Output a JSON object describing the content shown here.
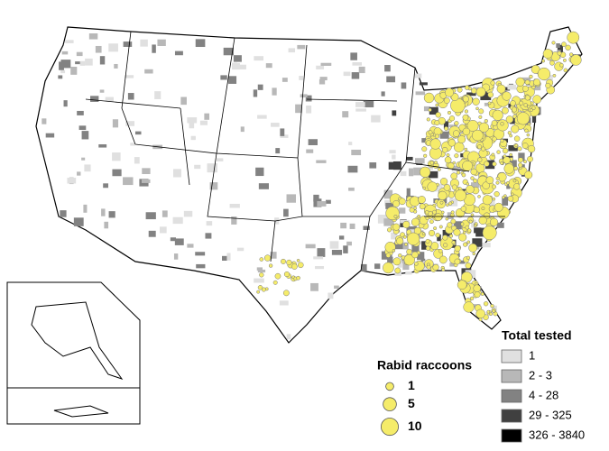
{
  "legend_total_tested": {
    "title": "Total tested",
    "items": [
      {
        "label": "1",
        "color": "#e0e0e0"
      },
      {
        "label": "2 - 3",
        "color": "#b8b8b8"
      },
      {
        "label": "4 - 28",
        "color": "#828282"
      },
      {
        "label": "29 - 325",
        "color": "#404040"
      },
      {
        "label": "326 - 3840",
        "color": "#000000"
      }
    ]
  },
  "legend_rabid_raccoons": {
    "title": "Rabid raccoons",
    "sizes": [
      1,
      5,
      10
    ],
    "color": "#f5ec6a"
  }
}
